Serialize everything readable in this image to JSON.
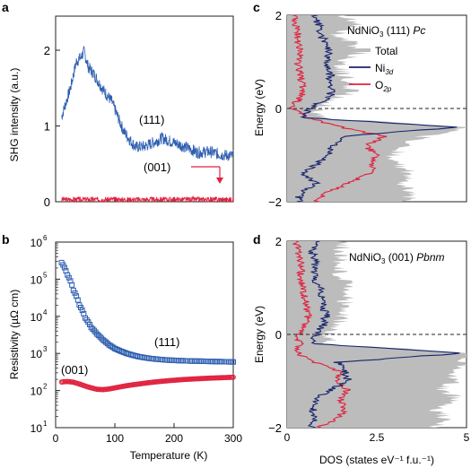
{
  "colors": {
    "blue": "#2f5fb0",
    "red": "#e0223f",
    "navy": "#17246b",
    "gray": "#bcbcbc",
    "axis": "#222222"
  },
  "panels": {
    "a": "a",
    "b": "b",
    "c": "c",
    "d": "d"
  },
  "chart_data": [
    {
      "id": "a",
      "type": "line",
      "xlabel": "",
      "ylabel": "SHG intensity (a.u.)",
      "xlim": [
        0,
        300
      ],
      "ylim": [
        0,
        2.45
      ],
      "yticks": [
        "0",
        "1",
        "2"
      ],
      "series": [
        {
          "name": "(111)",
          "x": [
            10,
            25,
            35,
            42,
            48,
            55,
            65,
            80,
            95,
            105,
            115,
            125,
            135,
            150,
            165,
            180,
            200,
            220,
            240,
            260,
            280,
            300
          ],
          "y": [
            1.12,
            1.5,
            1.85,
            1.9,
            1.98,
            1.78,
            1.68,
            1.48,
            1.32,
            1.12,
            0.93,
            0.82,
            0.72,
            0.73,
            0.78,
            0.84,
            0.78,
            0.72,
            0.65,
            0.66,
            0.62,
            0.6
          ]
        },
        {
          "name": "(001)",
          "x": [
            10,
            300
          ],
          "y": [
            0.03,
            0.03
          ]
        }
      ]
    },
    {
      "id": "b",
      "type": "scatter",
      "xlabel": "Temperature (K)",
      "ylabel": "Resistivity (µΩ cm)",
      "yscale": "log",
      "xlim": [
        0,
        300
      ],
      "ylim": [
        10,
        1000000
      ],
      "xticks": [
        "0",
        "100",
        "200",
        "300"
      ],
      "yticks": [
        "10",
        "10",
        "10",
        "10",
        "10",
        "10"
      ],
      "ytick_exp": [
        "1",
        "2",
        "3",
        "4",
        "5",
        "6"
      ],
      "series": [
        {
          "name": "(111)",
          "x": [
            10,
            20,
            30,
            40,
            50,
            60,
            70,
            80,
            90,
            100,
            110,
            120,
            130,
            140,
            150,
            160,
            170,
            180,
            190,
            200,
            220,
            240,
            260,
            280,
            300
          ],
          "y": [
            280000,
            130000,
            50000,
            20000,
            9000,
            5000,
            3300,
            2300,
            1700,
            1350,
            1150,
            1000,
            900,
            820,
            770,
            730,
            700,
            680,
            660,
            650,
            630,
            620,
            610,
            600,
            590
          ]
        },
        {
          "name": "(001)",
          "x": [
            10,
            20,
            30,
            40,
            50,
            60,
            70,
            80,
            90,
            100,
            120,
            140,
            160,
            180,
            200,
            220,
            240,
            260,
            280,
            300
          ],
          "y": [
            170,
            175,
            168,
            150,
            132,
            118,
            108,
            106,
            110,
            118,
            135,
            150,
            165,
            178,
            190,
            200,
            208,
            216,
            222,
            228
          ]
        }
      ]
    },
    {
      "id": "c",
      "type": "area",
      "xlabel": "",
      "ylabel": "Energy (eV)",
      "title": "NdNiO",
      "title_sub": "3",
      "title_rest": " (111) ",
      "title_italic": "Pc",
      "xlim": [
        0,
        5
      ],
      "ylim": [
        -2,
        2
      ],
      "yticks": [
        "−2",
        "0",
        "2"
      ],
      "legend": {
        "total": "Total",
        "ni": "Ni",
        "ni_sub": "3d",
        "o": "O",
        "o_sub": "2p"
      },
      "series": [
        {
          "name": "Total",
          "energy": [
            2,
            1.8,
            1.6,
            1.4,
            1.2,
            1,
            0.8,
            0.6,
            0.4,
            0.2,
            0,
            -0.2,
            -0.4,
            -0.6,
            -0.8,
            -1,
            -1.2,
            -1.4,
            -1.6,
            -1.8,
            -2
          ],
          "dos": [
            1.6,
            1.9,
            1.4,
            1.8,
            2.1,
            1.5,
            1.5,
            1.7,
            1.8,
            1.4,
            0.9,
            0.9,
            5,
            3.8,
            3.3,
            3,
            3.1,
            3.4,
            3.2,
            3.5,
            3.3
          ]
        },
        {
          "name": "Ni3d",
          "energy": [
            2,
            1.8,
            1.6,
            1.4,
            1.2,
            1,
            0.8,
            0.6,
            0.4,
            0.2,
            0,
            -0.2,
            -0.4,
            -0.6,
            -0.8,
            -1,
            -1.2,
            -1.4,
            -1.6,
            -1.8,
            -2
          ],
          "dos": [
            0.75,
            0.9,
            0.9,
            1.1,
            1.2,
            1.1,
            1.2,
            1.2,
            1.3,
            1.1,
            0.65,
            0.5,
            4.8,
            1.5,
            1.3,
            1.1,
            0.8,
            0.4,
            0.8,
            0.4,
            0.3
          ]
        },
        {
          "name": "O2p",
          "energy": [
            2,
            1.8,
            1.6,
            1.4,
            1.2,
            1,
            0.8,
            0.6,
            0.4,
            0.2,
            0,
            -0.2,
            -0.4,
            -0.6,
            -0.8,
            -1,
            -1.2,
            -1.4,
            -1.6,
            -1.8,
            -2
          ],
          "dos": [
            0.2,
            0.25,
            0.3,
            0.3,
            0.35,
            0.3,
            0.35,
            0.4,
            0.45,
            0.35,
            0.1,
            0.6,
            1.5,
            2.7,
            2.2,
            2.5,
            2.4,
            2.3,
            1.7,
            1.1,
            0.8
          ]
        }
      ]
    },
    {
      "id": "d",
      "type": "area",
      "xlabel": "DOS (states eV⁻¹ f.u.⁻¹)",
      "ylabel": "Energy (eV)",
      "title": "NdNiO",
      "title_sub": "3",
      "title_rest": " (001) ",
      "title_italic": "Pbnm",
      "xlim": [
        0,
        5
      ],
      "ylim": [
        -2,
        2
      ],
      "xticks": [
        "0",
        "2.5",
        "5"
      ],
      "yticks": [
        "−2",
        "0",
        "2"
      ],
      "series": [
        {
          "name": "Total",
          "energy": [
            2,
            1.8,
            1.6,
            1.4,
            1.2,
            1,
            0.8,
            0.6,
            0.4,
            0.2,
            0,
            -0.2,
            -0.4,
            -0.6,
            -0.8,
            -1,
            -1.2,
            -1.4,
            -1.6,
            -1.8,
            -2
          ],
          "dos": [
            1.6,
            1.5,
            1.5,
            1.4,
            1.5,
            1.8,
            1.7,
            1.6,
            1.5,
            1.4,
            1.1,
            1.2,
            5,
            5,
            4.8,
            4.6,
            4.3,
            4.8,
            4.2,
            4.4,
            4.1
          ]
        },
        {
          "name": "Ni3d",
          "energy": [
            2,
            1.8,
            1.6,
            1.4,
            1.2,
            1,
            0.8,
            0.6,
            0.4,
            0.2,
            0,
            -0.2,
            -0.4,
            -0.6,
            -0.8,
            -1,
            -1.2,
            -1.4,
            -1.6,
            -1.8,
            -2
          ],
          "dos": [
            0.8,
            0.7,
            0.75,
            0.8,
            0.75,
            0.95,
            1,
            1,
            1.1,
            1,
            0.85,
            0.7,
            4.9,
            1.4,
            1.6,
            1.7,
            1.2,
            0.8,
            0.7,
            0.75,
            0.7
          ]
        },
        {
          "name": "O2p",
          "energy": [
            2,
            1.8,
            1.6,
            1.4,
            1.2,
            1,
            0.8,
            0.6,
            0.4,
            0.2,
            0,
            -0.2,
            -0.4,
            -0.6,
            -0.8,
            -1,
            -1.2,
            -1.4,
            -1.6,
            -1.8,
            -2
          ],
          "dos": [
            0.25,
            0.3,
            0.35,
            0.4,
            0.35,
            0.45,
            0.5,
            0.55,
            0.6,
            0.5,
            0.3,
            0.35,
            0.3,
            0.8,
            1.5,
            1.4,
            1.7,
            1.5,
            1.6,
            1.4,
            0.9
          ]
        }
      ]
    }
  ]
}
